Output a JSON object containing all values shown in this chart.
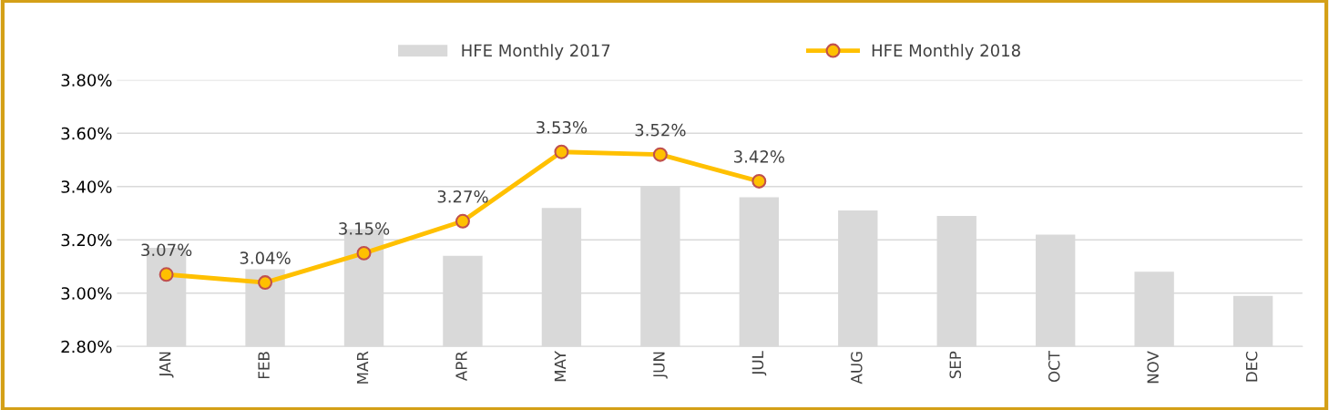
{
  "chart_data": {
    "type": "bar",
    "categories": [
      "JAN",
      "FEB",
      "MAR",
      "APR",
      "MAY",
      "JUN",
      "JUL",
      "AUG",
      "SEP",
      "OCT",
      "NOV",
      "DEC"
    ],
    "series": [
      {
        "name": "HFE Monthly 2017",
        "color": "#d9d9d9",
        "values": [
          3.17,
          3.09,
          3.24,
          3.14,
          3.32,
          3.4,
          3.36,
          3.31,
          3.29,
          3.22,
          3.08,
          2.99
        ]
      },
      {
        "name": "HFE Monthly 2018",
        "type": "line",
        "color": "#ffc000",
        "marker": "circle",
        "values": [
          3.07,
          3.04,
          3.15,
          3.27,
          3.53,
          3.52,
          3.42,
          null,
          null,
          null,
          null,
          null
        ],
        "value_labels": [
          "3.07%",
          "3.04%",
          "3.15%",
          "3.27%",
          "3.53%",
          "3.52%",
          "3.42%",
          null,
          null,
          null,
          null,
          null
        ]
      }
    ],
    "ylim": [
      2.8,
      3.8
    ],
    "yticks": [
      {
        "value": 2.8,
        "label": "2.80%"
      },
      {
        "value": 3.0,
        "label": "3.00%"
      },
      {
        "value": 3.2,
        "label": "3.20%"
      },
      {
        "value": 3.4,
        "label": "3.40%"
      },
      {
        "value": 3.6,
        "label": "3.60%"
      },
      {
        "value": 3.8,
        "label": "3.80%"
      }
    ],
    "grid": "y",
    "legend": "top"
  }
}
